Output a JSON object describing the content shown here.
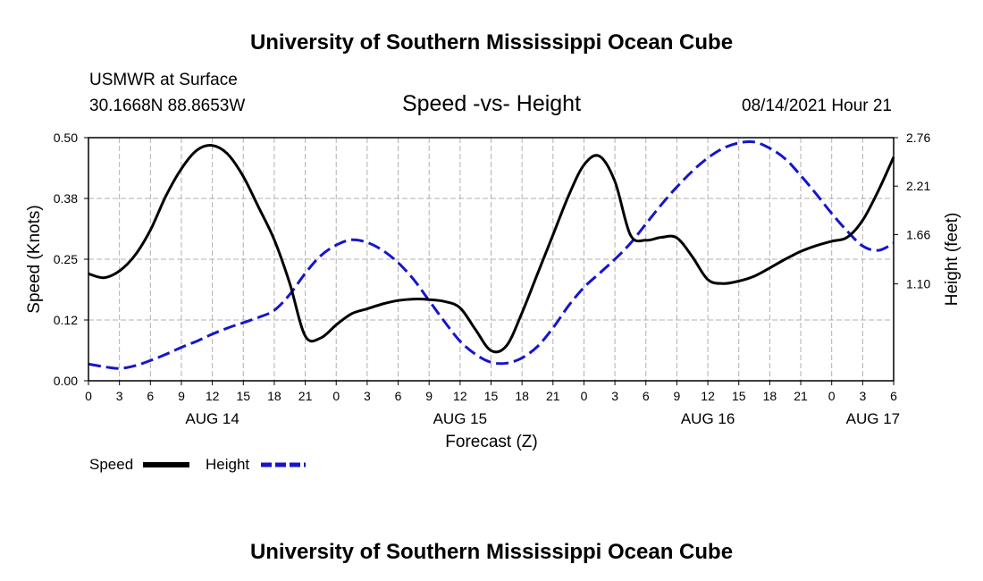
{
  "header": {
    "title": "University of Southern Mississippi Ocean Cube",
    "station": "USMWR at Surface",
    "coords": "30.1668N  88.8653W",
    "plot_title": "Speed -vs- Height",
    "datetime": "08/14/2021 Hour 21"
  },
  "footer": {
    "title": "University of Southern Mississippi Ocean Cube"
  },
  "legend": {
    "speed_label": "Speed",
    "height_label": "Height"
  },
  "colors": {
    "speed": "#000000",
    "height": "#1515cc",
    "grid": "#b0b0b0"
  },
  "chart_data": {
    "type": "line",
    "title": "Speed -vs- Height",
    "xlabel": "Forecast (Z)",
    "ylabel": "Speed (Knots)",
    "y2label": "Height (feet)",
    "x_unit": "hours since 00Z Aug 14",
    "xlim": [
      0,
      78
    ],
    "ylim": [
      0,
      0.5
    ],
    "y2lim": [
      0.0,
      2.76
    ],
    "x_ticks": [
      0,
      3,
      6,
      9,
      12,
      15,
      18,
      21,
      24,
      27,
      30,
      33,
      36,
      39,
      42,
      45,
      48,
      51,
      54,
      57,
      60,
      63,
      66,
      69,
      72,
      75,
      78
    ],
    "x_tick_labels": [
      "0",
      "3",
      "6",
      "9",
      "12",
      "15",
      "18",
      "21",
      "0",
      "3",
      "6",
      "9",
      "12",
      "15",
      "18",
      "21",
      "0",
      "3",
      "6",
      "9",
      "12",
      "15",
      "18",
      "21",
      "0",
      "3",
      "6"
    ],
    "date_labels": [
      {
        "hour": 12,
        "label": "AUG 14"
      },
      {
        "hour": 36,
        "label": "AUG 15"
      },
      {
        "hour": 60,
        "label": "AUG 16"
      },
      {
        "hour": 76,
        "label": "AUG 17"
      }
    ],
    "y_ticks": [
      0.0,
      0.125,
      0.25,
      0.375,
      0.5
    ],
    "y_tick_labels": [
      "0.00",
      "0.12",
      "0.25",
      "0.38",
      "0.50"
    ],
    "y2_ticks": [
      1.1,
      1.66,
      2.21,
      2.76
    ],
    "y2_tick_labels": [
      "1.10",
      "1.66",
      "2.21",
      "2.76"
    ],
    "grid": true,
    "legend_position": "bottom-left",
    "series": [
      {
        "name": "Speed",
        "axis": "left",
        "style": "solid",
        "x": [
          0,
          1.5,
          3,
          4.5,
          6,
          7.5,
          9,
          10.5,
          12,
          13.5,
          15,
          16.5,
          18,
          19.5,
          21,
          22.5,
          24,
          25.5,
          27,
          28.5,
          30,
          31.5,
          33,
          34.5,
          36,
          37.5,
          39,
          40.5,
          42,
          43.5,
          45,
          46.5,
          48,
          49.5,
          51,
          52.5,
          54,
          55.5,
          57,
          58.5,
          60,
          61.5,
          63,
          64.5,
          66,
          67.5,
          69,
          70.5,
          72,
          73.5,
          75,
          76.5,
          78
        ],
        "values": [
          0.22,
          0.212,
          0.226,
          0.258,
          0.31,
          0.38,
          0.436,
          0.474,
          0.484,
          0.466,
          0.42,
          0.356,
          0.29,
          0.2,
          0.092,
          0.088,
          0.115,
          0.138,
          0.148,
          0.158,
          0.165,
          0.168,
          0.167,
          0.163,
          0.15,
          0.105,
          0.062,
          0.072,
          0.14,
          0.22,
          0.3,
          0.38,
          0.444,
          0.462,
          0.41,
          0.3,
          0.289,
          0.295,
          0.294,
          0.255,
          0.208,
          0.2,
          0.205,
          0.215,
          0.232,
          0.25,
          0.266,
          0.278,
          0.287,
          0.295,
          0.33,
          0.39,
          0.46
        ]
      },
      {
        "name": "Height",
        "axis": "right",
        "style": "dashed",
        "x": [
          0,
          1.5,
          3,
          4.5,
          6,
          7.5,
          9,
          10.5,
          12,
          13.5,
          15,
          16.5,
          18,
          19.5,
          21,
          22.5,
          24,
          25.5,
          27,
          28.5,
          30,
          31.5,
          33,
          34.5,
          36,
          37.5,
          39,
          40.5,
          42,
          43.5,
          45,
          46.5,
          48,
          49.5,
          51,
          52.5,
          54,
          55.5,
          57,
          58.5,
          60,
          61.5,
          63,
          64.5,
          66,
          67.5,
          69,
          70.5,
          72,
          73.5,
          75,
          76.5,
          78
        ],
        "values": [
          0.19,
          0.16,
          0.14,
          0.17,
          0.23,
          0.3,
          0.38,
          0.45,
          0.53,
          0.6,
          0.66,
          0.72,
          0.8,
          0.98,
          1.22,
          1.42,
          1.54,
          1.6,
          1.57,
          1.48,
          1.34,
          1.15,
          0.91,
          0.67,
          0.45,
          0.3,
          0.21,
          0.2,
          0.26,
          0.39,
          0.6,
          0.85,
          1.06,
          1.22,
          1.38,
          1.56,
          1.78,
          2.0,
          2.2,
          2.38,
          2.53,
          2.64,
          2.7,
          2.71,
          2.64,
          2.52,
          2.33,
          2.12,
          1.9,
          1.7,
          1.53,
          1.48,
          1.56
        ]
      }
    ]
  }
}
